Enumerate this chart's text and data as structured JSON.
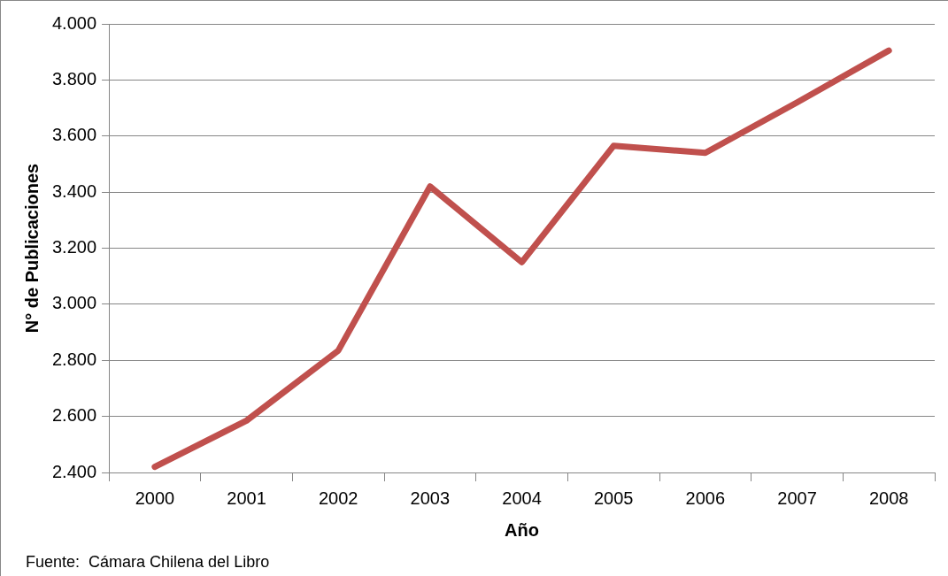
{
  "chart_data": {
    "type": "line",
    "xlabel": "Año",
    "ylabel": "N° de Publicaciones",
    "categories": [
      "2000",
      "2001",
      "2002",
      "2003",
      "2004",
      "2005",
      "2006",
      "2007",
      "2008"
    ],
    "series": [
      {
        "color": "#c0504d",
        "values": [
          2420,
          2585,
          2835,
          3420,
          3150,
          3565,
          3540,
          3720,
          3905
        ]
      }
    ],
    "ylim": [
      2400,
      4000
    ],
    "yticks": [
      {
        "value": 2400,
        "label": "2.400"
      },
      {
        "value": 2600,
        "label": "2.600"
      },
      {
        "value": 2800,
        "label": "2.800"
      },
      {
        "value": 3000,
        "label": "3.000"
      },
      {
        "value": 3200,
        "label": "3.200"
      },
      {
        "value": 3400,
        "label": "3.400"
      },
      {
        "value": 3600,
        "label": "3.600"
      },
      {
        "value": 3800,
        "label": "3.800"
      },
      {
        "value": 4000,
        "label": "4.000"
      }
    ],
    "grid": "y",
    "legend": false,
    "marker": "none",
    "line_style": "solid",
    "annotations": [
      "Fuente:  Cámara Chilena del Libro"
    ]
  }
}
